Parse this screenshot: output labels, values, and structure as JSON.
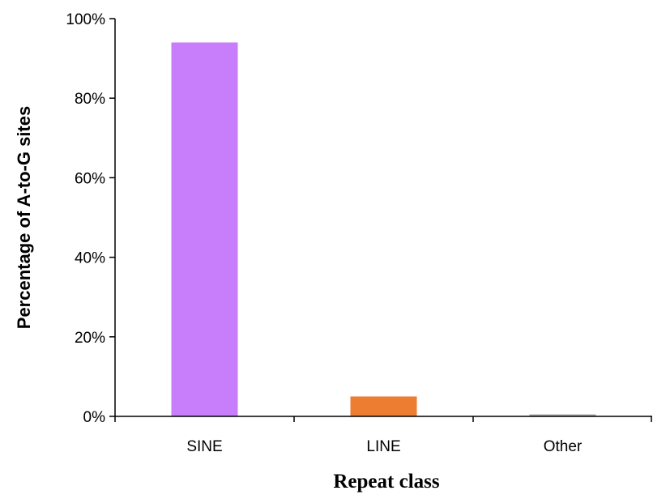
{
  "chart_data": {
    "type": "bar",
    "categories": [
      "SINE",
      "LINE",
      "Other"
    ],
    "values": [
      94,
      5,
      0.5
    ],
    "value_unit": "percent",
    "ylim": [
      0,
      100
    ],
    "yticks": [
      0,
      20,
      40,
      60,
      80,
      100
    ],
    "ytick_labels": [
      "0%",
      "20%",
      "40%",
      "60%",
      "80%",
      "100%"
    ],
    "xlabel": "Repeat class",
    "ylabel": "Percentage of A-to-G sites",
    "bar_colors": [
      "#c87dfb",
      "#ed7d31",
      "#a5a5a5"
    ],
    "grid": false,
    "legend": "none"
  }
}
